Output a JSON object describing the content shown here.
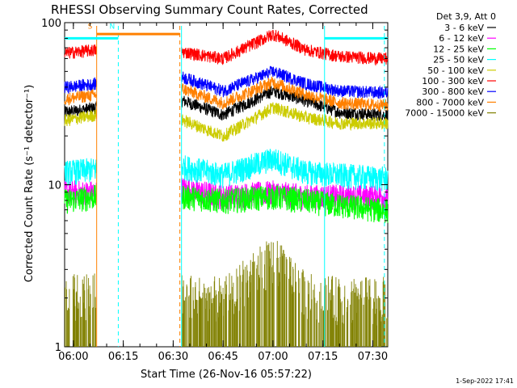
{
  "chart_data": {
    "type": "line",
    "title": "RHESSI Observing Summary Count Rates, Corrected",
    "xlabel": "Start Time (26-Nov-16 05:57:22)",
    "ylabel": "Corrected Count Rate (s⁻¹ detector⁻¹)",
    "y_scale": "log",
    "ylim": [
      1,
      100
    ],
    "xlim": [
      "05:57:22",
      "07:34:30"
    ],
    "x_ticks": [
      "06:00",
      "06:15",
      "06:30",
      "06:45",
      "07:00",
      "07:15",
      "07:30"
    ],
    "y_ticks": [
      "1",
      "10",
      "100"
    ],
    "grid": false,
    "legend_placement": "right",
    "legend_header": "Det 3,9, Att 0",
    "timestamp": "1-Sep-2022 17:41",
    "data_gaps": [
      [
        "06:07:00",
        "06:32:30"
      ]
    ],
    "annotations": [
      {
        "text": "S",
        "time": "06:07:00",
        "color": "#ff8000"
      },
      {
        "text": "N",
        "time": "06:13:30",
        "color": "#00ffff"
      }
    ],
    "flag_bars": [
      {
        "color": "#ff8000",
        "start": "06:07:00",
        "end": "06:32:00",
        "level": 85
      },
      {
        "color": "#00ffff",
        "start": "05:57:22",
        "end": "06:13:30",
        "level": 80
      },
      {
        "color": "#00ffff",
        "start": "07:15:30",
        "end": "07:34:30",
        "level": 80
      }
    ],
    "vlines": [
      {
        "color": "#ff8000",
        "time": "06:07:00",
        "style": "solid"
      },
      {
        "color": "#00ffff",
        "time": "06:13:30",
        "style": "dashed"
      },
      {
        "color": "#ff8000",
        "time": "06:32:00",
        "style": "dashed"
      },
      {
        "color": "#00ffff",
        "time": "06:32:30",
        "style": "solid"
      },
      {
        "color": "#00ffff",
        "time": "07:15:30",
        "style": "solid"
      },
      {
        "color": "#00ffff",
        "time": "07:33:30",
        "style": "dashed"
      }
    ],
    "series": [
      {
        "name": "3 - 6 keV",
        "color": "#000000",
        "x": [
          "05:58",
          "06:07",
          "06:33",
          "06:45",
          "07:00",
          "07:10",
          "07:20",
          "07:33"
        ],
        "values": [
          28,
          30,
          33,
          27,
          38,
          33,
          28,
          27
        ]
      },
      {
        "name": "6 - 12 keV",
        "color": "#ff00ff",
        "x": [
          "05:58",
          "06:07",
          "06:33",
          "06:45",
          "07:00",
          "07:10",
          "07:20",
          "07:33"
        ],
        "values": [
          9,
          9,
          9.5,
          8.5,
          9,
          8.5,
          8.5,
          8.5
        ]
      },
      {
        "name": "12 - 25 keV",
        "color": "#00ff00",
        "x": [
          "05:58",
          "06:07",
          "06:33",
          "06:45",
          "07:00",
          "07:10",
          "07:20",
          "07:33"
        ],
        "values": [
          8,
          8.5,
          8.5,
          8,
          8.5,
          8,
          7.5,
          7
        ]
      },
      {
        "name": "25 - 50 keV",
        "color": "#00ffff",
        "x": [
          "05:58",
          "06:07",
          "06:33",
          "06:45",
          "07:00",
          "07:10",
          "07:20",
          "07:33"
        ],
        "values": [
          12,
          12.5,
          13,
          11.5,
          14.5,
          12,
          11.5,
          11
        ]
      },
      {
        "name": "50 - 100 keV",
        "color": "#cccc00",
        "x": [
          "05:58",
          "06:07",
          "06:33",
          "06:45",
          "07:00",
          "07:10",
          "07:20",
          "07:33"
        ],
        "values": [
          25,
          27,
          25,
          20,
          30,
          26,
          24,
          24
        ]
      },
      {
        "name": "100 - 300 keV",
        "color": "#ff0000",
        "x": [
          "05:58",
          "06:07",
          "06:33",
          "06:45",
          "07:00",
          "07:10",
          "07:20",
          "07:33"
        ],
        "values": [
          65,
          68,
          66,
          60,
          85,
          68,
          62,
          60
        ]
      },
      {
        "name": "300 - 800 keV",
        "color": "#0000ff",
        "x": [
          "05:58",
          "06:07",
          "06:33",
          "06:45",
          "07:00",
          "07:10",
          "07:20",
          "07:33"
        ],
        "values": [
          40,
          42,
          46,
          38,
          50,
          42,
          38,
          37
        ]
      },
      {
        "name": "800 - 7000 keV",
        "color": "#ff8000",
        "x": [
          "05:58",
          "06:07",
          "06:33",
          "06:45",
          "07:00",
          "07:10",
          "07:20",
          "07:33"
        ],
        "values": [
          34,
          36,
          39,
          32,
          43,
          36,
          32,
          31
        ]
      },
      {
        "name": "7000 - 15000 keV",
        "color": "#808000",
        "x": [
          "05:58",
          "06:07",
          "06:33",
          "06:45",
          "07:00",
          "07:10",
          "07:20",
          "07:33"
        ],
        "values": [
          1.6,
          1.6,
          1.6,
          1.5,
          2.7,
          1.6,
          1.5,
          1.5
        ]
      }
    ]
  }
}
